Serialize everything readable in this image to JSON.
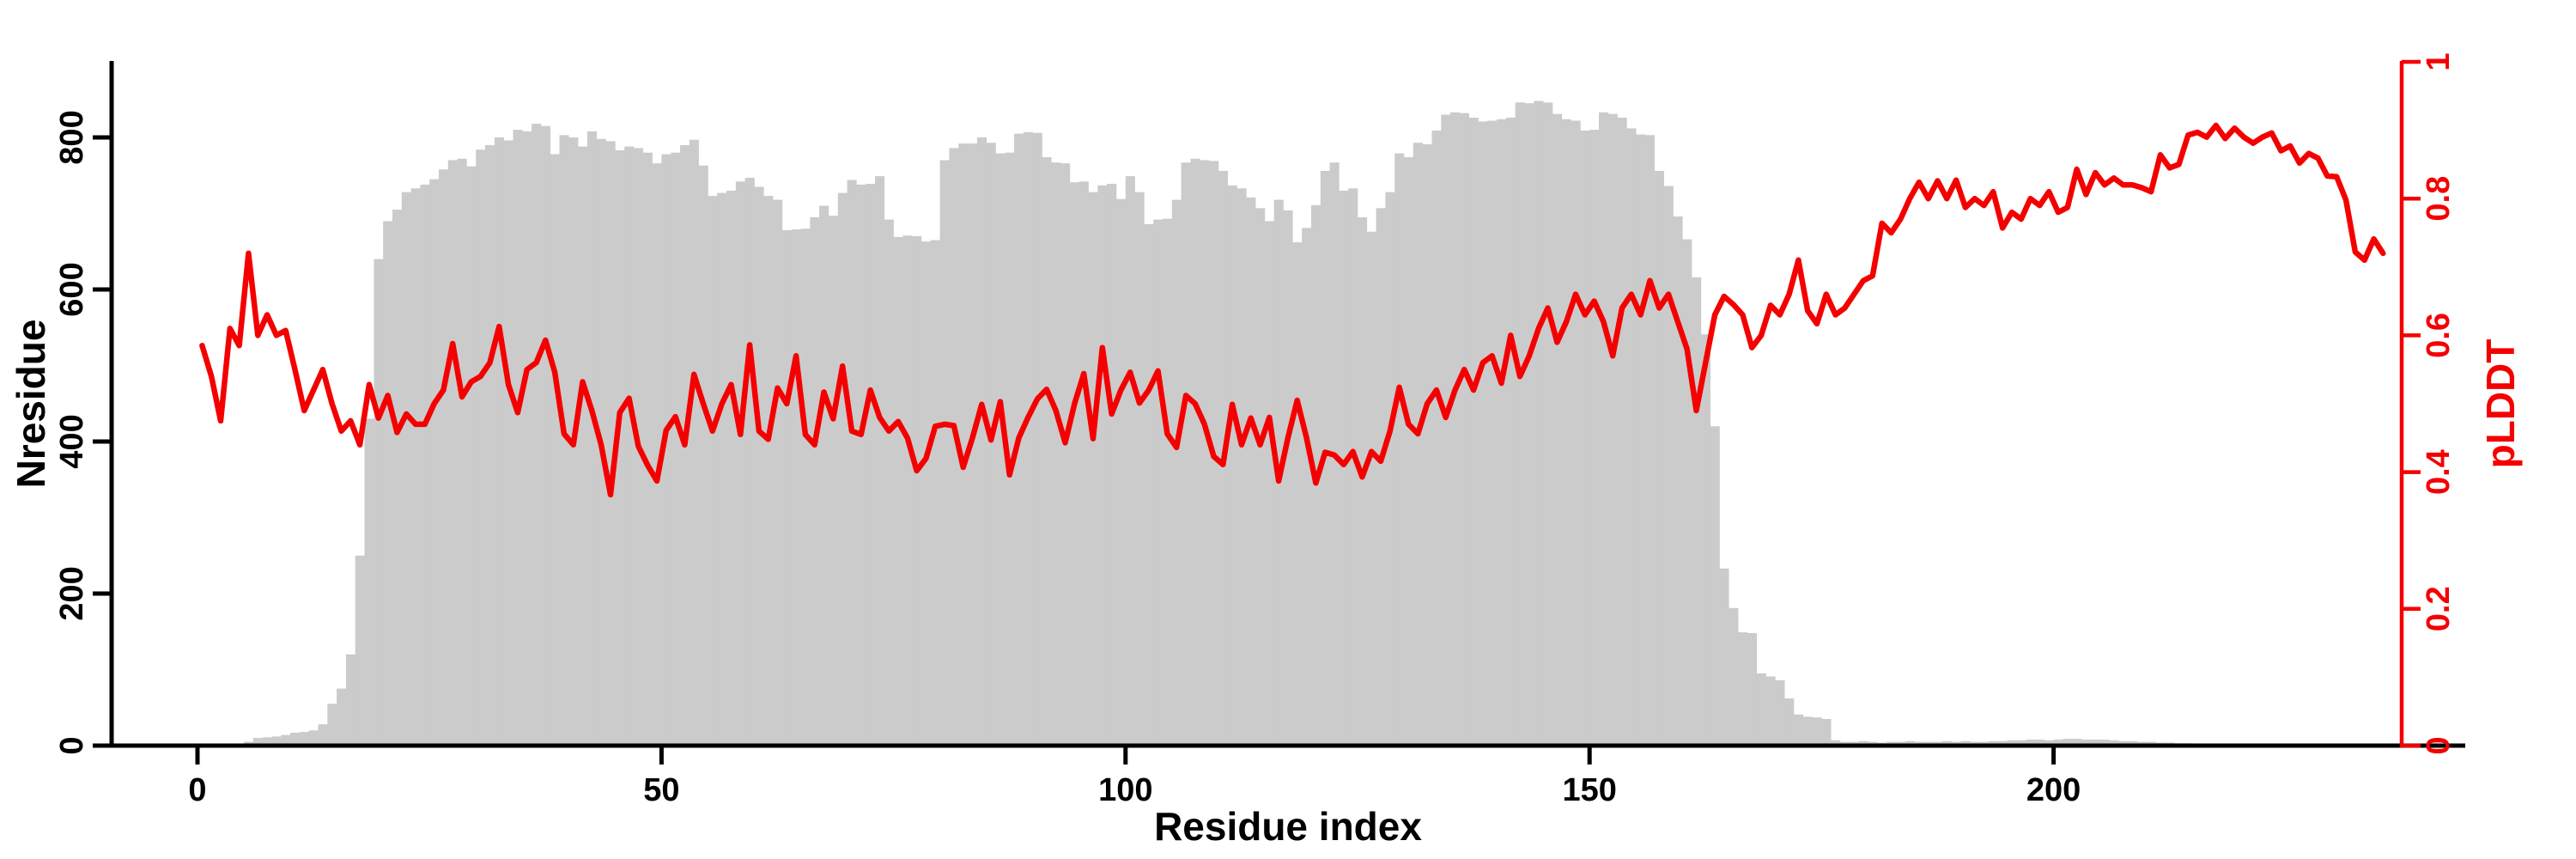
{
  "figure": {
    "xlabel": "Residue index",
    "ylabel_left": "Nresidue",
    "ylabel_right": "pLDDT",
    "colors": {
      "bar": "#cbcbcb",
      "line": "#f40000",
      "axis_left": "#000000",
      "axis_right": "#f40000"
    }
  },
  "chart_data": {
    "type": "bar",
    "subtype": "dual-axis bar + line",
    "title": "",
    "xlabel": "Residue index",
    "ylabel_left": "Nresidue",
    "ylabel_right": "pLDDT",
    "grid": false,
    "legend": null,
    "x_ticks": [
      0,
      50,
      100,
      150,
      200
    ],
    "yticks_left": [
      0,
      200,
      400,
      600,
      800
    ],
    "yticks_right": [
      0,
      0.2,
      0.4,
      0.6,
      0.8,
      1
    ],
    "ylim_left": [
      0,
      900
    ],
    "ylim_right": [
      0,
      1
    ],
    "xlim": [
      -9.3,
      237.5
    ],
    "x_start": 0,
    "x_step": 1,
    "series": [
      {
        "name": "Nresidue",
        "type": "bar",
        "yaxis": "left",
        "color": "#cbcbcb",
        "values": [
          0,
          0,
          0,
          0,
          2,
          5,
          10,
          11,
          12,
          14,
          17,
          18,
          20,
          28,
          55,
          75,
          120,
          250,
          430,
          640,
          690,
          705,
          728,
          733,
          738,
          745,
          758,
          770,
          772,
          762,
          784,
          790,
          800,
          796,
          810,
          808,
          818,
          815,
          778,
          803,
          800,
          788,
          808,
          798,
          795,
          783,
          788,
          786,
          780,
          766,
          778,
          780,
          790,
          797,
          763,
          723,
          727,
          730,
          742,
          747,
          735,
          723,
          718,
          678,
          679,
          680,
          695,
          710,
          697,
          727,
          744,
          738,
          739,
          749,
          692,
          669,
          671,
          670,
          663,
          665,
          770,
          786,
          792,
          792,
          800,
          793,
          779,
          780,
          805,
          807,
          806,
          774,
          767,
          766,
          741,
          742,
          728,
          737,
          739,
          719,
          749,
          728,
          686,
          692,
          693,
          718,
          767,
          772,
          770,
          769,
          756,
          737,
          733,
          721,
          707,
          690,
          718,
          704,
          662,
          681,
          711,
          756,
          767,
          730,
          733,
          695,
          676,
          707,
          728,
          779,
          774,
          793,
          791,
          809,
          830,
          833,
          832,
          826,
          821,
          822,
          824,
          826,
          846,
          845,
          848,
          846,
          831,
          824,
          822,
          809,
          810,
          833,
          831,
          826,
          812,
          804,
          803,
          756,
          736,
          696,
          666,
          616,
          541,
          420,
          233,
          181,
          149,
          148,
          95,
          91,
          86,
          62,
          41,
          38,
          37,
          35,
          7,
          5,
          5,
          6,
          5,
          4,
          5,
          5,
          6,
          5,
          5,
          5,
          6,
          5,
          6,
          5,
          5,
          6,
          6,
          7,
          7,
          8,
          8,
          7,
          8,
          9,
          9,
          8,
          8,
          8,
          7,
          6,
          6,
          5,
          5,
          4,
          4,
          3,
          3,
          2,
          0,
          0,
          0,
          0,
          0,
          0,
          0,
          0,
          0,
          0,
          0,
          0,
          0,
          0,
          0,
          0,
          0,
          0,
          0,
          0,
          0,
          0
        ]
      },
      {
        "name": "pLDDT",
        "type": "line",
        "yaxis": "right",
        "color": "#f40000",
        "values": [
          0.585,
          0.54,
          0.475,
          0.61,
          0.585,
          0.72,
          0.6,
          0.63,
          0.6,
          0.607,
          0.55,
          0.49,
          0.52,
          0.55,
          0.5,
          0.46,
          0.475,
          0.44,
          0.528,
          0.479,
          0.512,
          0.458,
          0.485,
          0.47,
          0.47,
          0.5,
          0.52,
          0.588,
          0.51,
          0.532,
          0.54,
          0.56,
          0.613,
          0.528,
          0.487,
          0.55,
          0.56,
          0.593,
          0.546,
          0.456,
          0.44,
          0.532,
          0.49,
          0.44,
          0.367,
          0.487,
          0.508,
          0.438,
          0.41,
          0.387,
          0.461,
          0.481,
          0.44,
          0.543,
          0.5,
          0.46,
          0.5,
          0.528,
          0.455,
          0.586,
          0.46,
          0.448,
          0.523,
          0.5,
          0.57,
          0.455,
          0.44,
          0.517,
          0.478,
          0.555,
          0.46,
          0.455,
          0.52,
          0.48,
          0.46,
          0.474,
          0.45,
          0.402,
          0.42,
          0.467,
          0.47,
          0.468,
          0.407,
          0.45,
          0.499,
          0.447,
          0.503,
          0.396,
          0.45,
          0.48,
          0.507,
          0.521,
          0.49,
          0.443,
          0.5,
          0.544,
          0.449,
          0.582,
          0.485,
          0.52,
          0.546,
          0.501,
          0.52,
          0.548,
          0.456,
          0.436,
          0.512,
          0.5,
          0.47,
          0.423,
          0.411,
          0.499,
          0.44,
          0.479,
          0.44,
          0.48,
          0.387,
          0.45,
          0.505,
          0.45,
          0.384,
          0.429,
          0.425,
          0.411,
          0.43,
          0.393,
          0.43,
          0.416,
          0.46,
          0.524,
          0.47,
          0.456,
          0.5,
          0.52,
          0.48,
          0.52,
          0.55,
          0.52,
          0.56,
          0.57,
          0.53,
          0.6,
          0.54,
          0.57,
          0.61,
          0.64,
          0.59,
          0.62,
          0.66,
          0.63,
          0.65,
          0.62,
          0.57,
          0.64,
          0.66,
          0.63,
          0.68,
          0.64,
          0.66,
          0.62,
          0.58,
          0.49,
          0.56,
          0.63,
          0.657,
          0.645,
          0.63,
          0.582,
          0.6,
          0.644,
          0.63,
          0.66,
          0.71,
          0.636,
          0.617,
          0.66,
          0.63,
          0.64,
          0.66,
          0.68,
          0.687,
          0.764,
          0.75,
          0.77,
          0.8,
          0.824,
          0.8,
          0.826,
          0.8,
          0.827,
          0.787,
          0.8,
          0.79,
          0.81,
          0.757,
          0.78,
          0.77,
          0.8,
          0.79,
          0.81,
          0.78,
          0.787,
          0.843,
          0.806,
          0.838,
          0.82,
          0.83,
          0.82,
          0.82,
          0.816,
          0.81,
          0.864,
          0.845,
          0.85,
          0.893,
          0.897,
          0.89,
          0.907,
          0.888,
          0.903,
          0.89,
          0.881,
          0.89,
          0.896,
          0.87,
          0.877,
          0.852,
          0.866,
          0.859,
          0.833,
          0.832,
          0.798,
          0.722,
          0.71,
          0.741,
          0.72
        ]
      }
    ]
  }
}
